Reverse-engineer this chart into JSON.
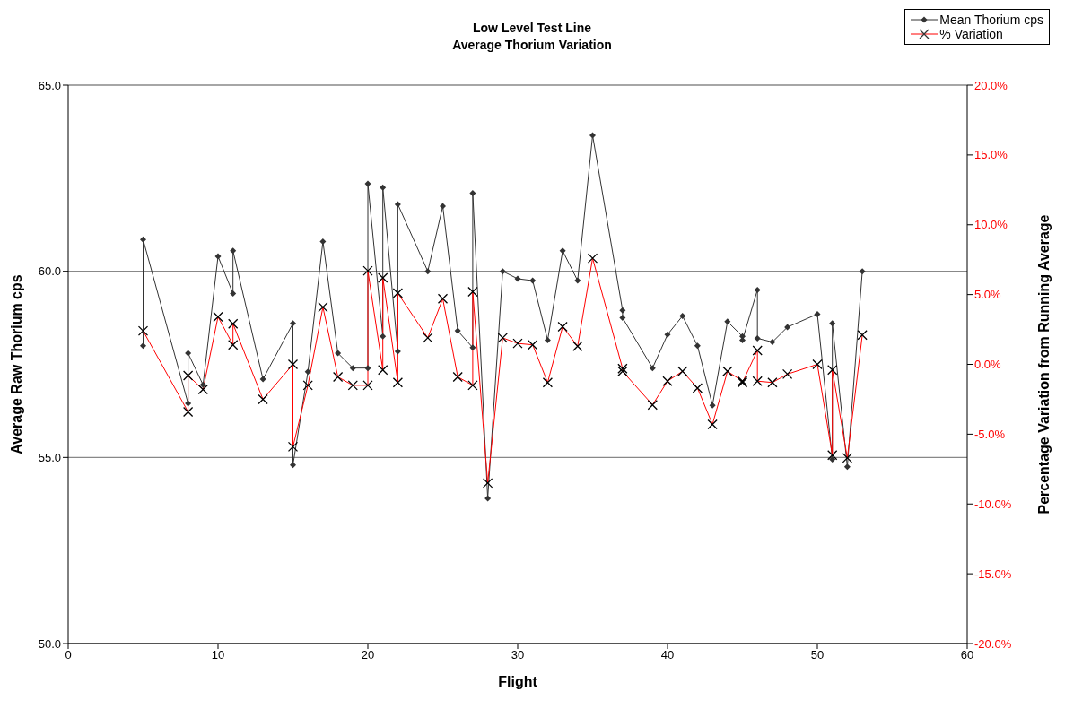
{
  "chart_data": {
    "type": "line",
    "title": "Low Level Test Line\nAverage Thorium Variation",
    "xlabel": "Flight",
    "ylabel": "Average Raw Thorium cps",
    "y2label": "Percentage Variation from Running Average",
    "xlim": [
      0,
      60
    ],
    "xticks": [
      0,
      10,
      20,
      30,
      40,
      50,
      60
    ],
    "ylim": [
      50,
      65
    ],
    "yticks": [
      {
        "value": 50,
        "label": "50.0"
      },
      {
        "value": 55,
        "label": "55.0"
      },
      {
        "value": 60,
        "label": "60.0"
      },
      {
        "value": 65,
        "label": "65.0"
      }
    ],
    "y2lim": [
      -20,
      20
    ],
    "y2ticks": [
      {
        "value": -20,
        "label": "-20.0%"
      },
      {
        "value": -15,
        "label": "-15.0%"
      },
      {
        "value": -10,
        "label": "-10.0%"
      },
      {
        "value": -5,
        "label": "-5.0%"
      },
      {
        "value": 0,
        "label": "0.0%"
      },
      {
        "value": 5,
        "label": "5.0%"
      },
      {
        "value": 10,
        "label": "10.0%"
      },
      {
        "value": 15,
        "label": "15.0%"
      },
      {
        "value": 20,
        "label": "20.0%"
      }
    ],
    "grid": "y",
    "legend": "top right",
    "line_style": "solid",
    "series": [
      {
        "name": "Mean Thorium cps",
        "color": "#333333",
        "marker": "diamond",
        "x": [
          5,
          5,
          8,
          8,
          9,
          10,
          11,
          11,
          13,
          15,
          15,
          16,
          17,
          18,
          19,
          20,
          20,
          21,
          21,
          22,
          22,
          24,
          25,
          26,
          27,
          27,
          28,
          29,
          30,
          31,
          32,
          33,
          34,
          35,
          37,
          37,
          39,
          40,
          41,
          42,
          43,
          44,
          45,
          45,
          46,
          46,
          47,
          48,
          50,
          51,
          51,
          52,
          53
        ],
        "values": [
          58.0,
          60.85,
          56.45,
          57.8,
          56.95,
          60.4,
          59.4,
          60.55,
          57.1,
          58.6,
          54.8,
          57.3,
          60.8,
          57.8,
          57.4,
          57.4,
          62.35,
          58.25,
          62.25,
          57.85,
          61.8,
          60.0,
          61.75,
          58.4,
          57.95,
          62.1,
          53.9,
          60.0,
          59.8,
          59.75,
          58.15,
          60.55,
          59.75,
          63.65,
          58.95,
          58.75,
          57.4,
          58.3,
          58.8,
          58.0,
          56.4,
          58.65,
          58.25,
          58.15,
          59.5,
          58.2,
          58.1,
          58.5,
          58.85,
          54.95,
          58.6,
          54.75,
          60.0
        ]
      },
      {
        "name": "% Variation",
        "color": "#ff0000",
        "marker": "cross",
        "axis": "y2",
        "x": [
          5,
          8,
          8,
          9,
          10,
          11,
          11,
          13,
          15,
          15,
          16,
          17,
          18,
          19,
          20,
          20,
          21,
          21,
          22,
          22,
          24,
          25,
          26,
          27,
          27,
          28,
          29,
          30,
          31,
          32,
          33,
          34,
          35,
          37,
          37,
          39,
          40,
          41,
          42,
          43,
          44,
          45,
          45,
          46,
          46,
          47,
          48,
          50,
          51,
          51,
          52,
          53
        ],
        "values": [
          2.4,
          -3.4,
          -0.8,
          -1.8,
          3.4,
          1.4,
          2.9,
          -2.5,
          0.0,
          -5.9,
          -1.5,
          4.1,
          -0.9,
          -1.5,
          -1.5,
          6.7,
          -0.4,
          6.2,
          -1.3,
          5.1,
          1.9,
          4.7,
          -0.9,
          -1.5,
          5.2,
          -8.5,
          1.9,
          1.5,
          1.4,
          -1.3,
          2.7,
          1.3,
          7.6,
          -0.3,
          -0.5,
          -2.9,
          -1.2,
          -0.5,
          -1.7,
          -4.3,
          -0.5,
          -1.2,
          -1.3,
          1.0,
          -1.2,
          -1.3,
          -0.7,
          0.0,
          -6.5,
          -0.4,
          -6.7,
          2.1
        ]
      }
    ]
  }
}
